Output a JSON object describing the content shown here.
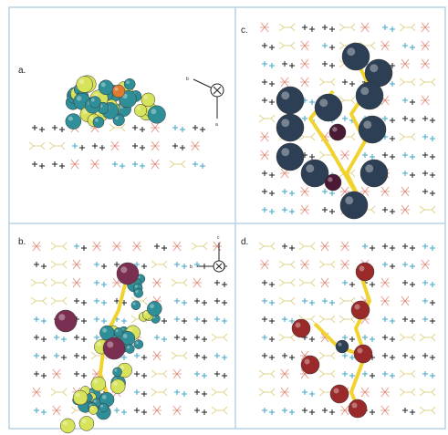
{
  "panels": [
    {
      "label": "a.",
      "axis_labels": [
        "b",
        "a"
      ]
    },
    {
      "label": "c."
    },
    {
      "label": "b.",
      "axis_labels": [
        "c",
        "b"
      ]
    },
    {
      "label": "d."
    }
  ]
}
